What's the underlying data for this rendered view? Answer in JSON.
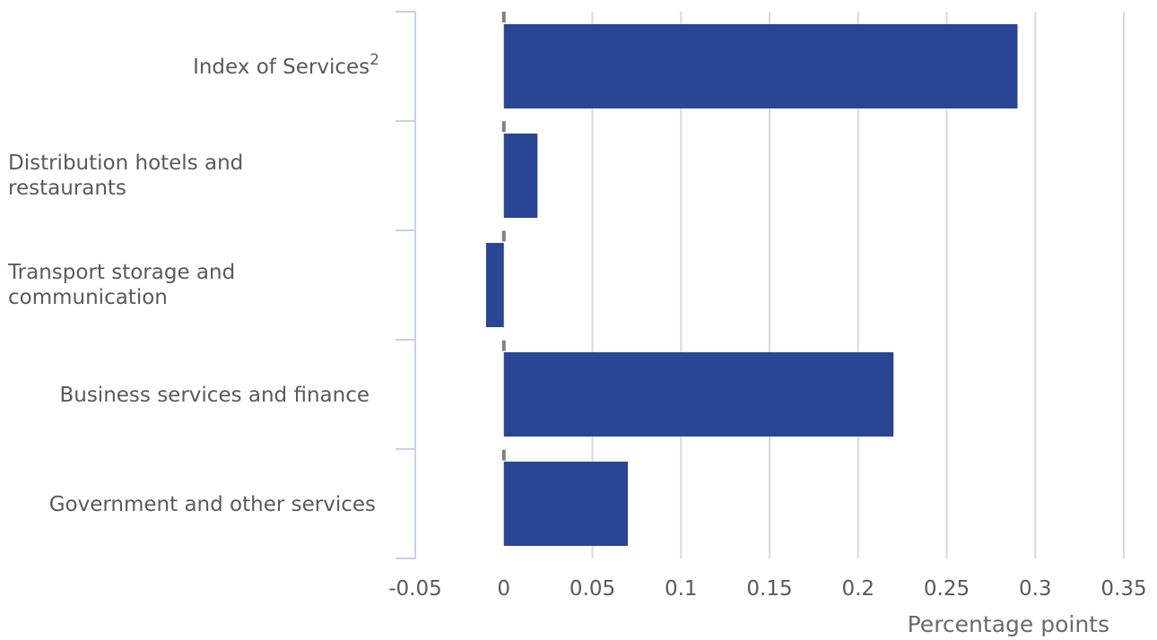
{
  "chart_data": {
    "type": "bar",
    "orientation": "horizontal",
    "categories": [
      [
        "Index of Services",
        "2"
      ],
      [
        "Distribution hotels and",
        "restaurants"
      ],
      [
        "Transport storage and",
        "communication"
      ],
      [
        "Business services and finance"
      ],
      [
        "Government and other services"
      ]
    ],
    "values": [
      0.29,
      0.019,
      -0.01,
      0.22,
      0.07
    ],
    "xlabel": "Percentage points",
    "xlim": [
      -0.05,
      0.35
    ],
    "xticks": [
      -0.05,
      0,
      0.05,
      0.1,
      0.15,
      0.2,
      0.25,
      0.3,
      0.35
    ],
    "xtick_labels": [
      "-0.05",
      "0",
      "0.05",
      "0.1",
      "0.15",
      "0.2",
      "0.25",
      "0.3",
      "0.35"
    ],
    "grid": "vertical",
    "legend": "none",
    "colors": {
      "bar": "#284694",
      "grid": "#d9d9d9",
      "zero_line": "#808080",
      "category_axis": "#c5d3e3"
    }
  }
}
